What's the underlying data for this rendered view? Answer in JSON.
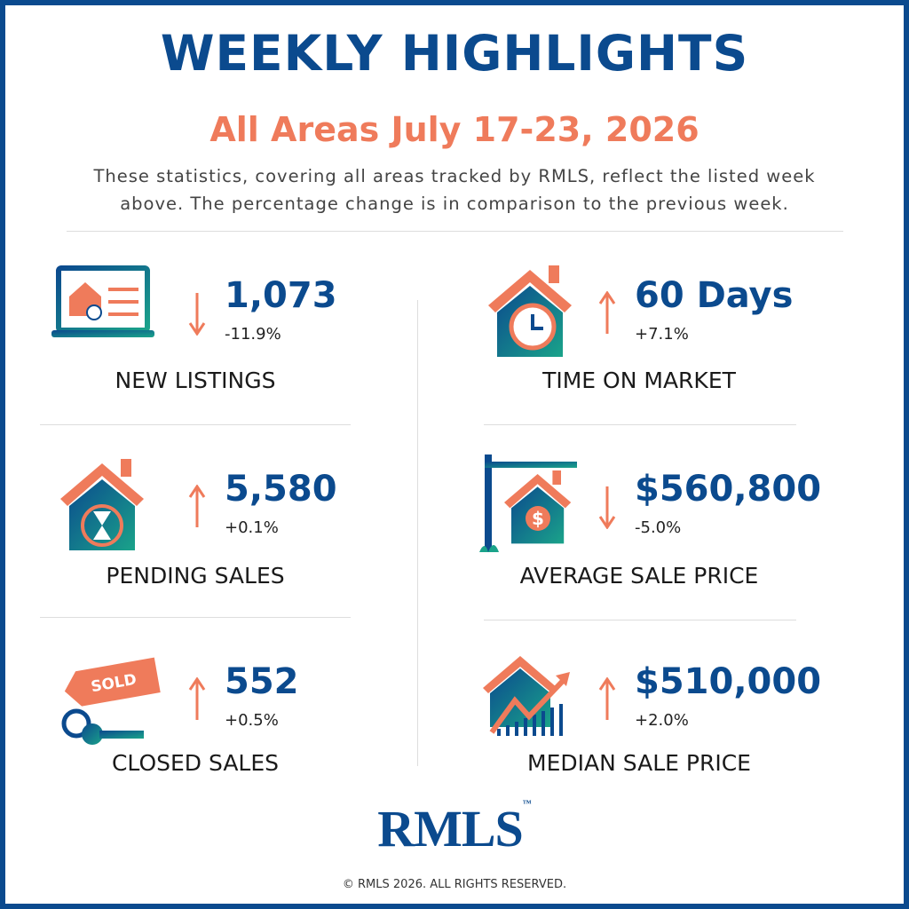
{
  "header": {
    "title": "WEEKLY HIGHLIGHTS",
    "subtitle": "All Areas July 17-23, 2026",
    "description": [
      "These statistics, covering all areas tracked by RMLS, reflect the listed week",
      "above. The percentage change is in comparison to the previous week."
    ]
  },
  "stats": [
    {
      "label": "NEW LISTINGS",
      "value": "1,073",
      "change": "-11.9%"
    },
    {
      "label": "TIME ON MARKET",
      "value": "60 Days",
      "change": "+7.1%"
    },
    {
      "label": "PENDING SALES",
      "value": "5,580",
      "change": "+0.1%"
    },
    {
      "label": "AVERAGE SALE PRICE",
      "value": "$560,800",
      "change": "-5.0%"
    },
    {
      "label": "CLOSED SALES",
      "value": "552",
      "change": "+0.5%",
      "badge": "SOLD"
    },
    {
      "label": "MEDIAN SALE PRICE",
      "value": "$510,000",
      "change": "+2.0%"
    }
  ],
  "footer": {
    "logo": "RMLS",
    "trademark": "™",
    "copyright": "© RMLS 2026. ALL RIGHTS RESERVED."
  }
}
